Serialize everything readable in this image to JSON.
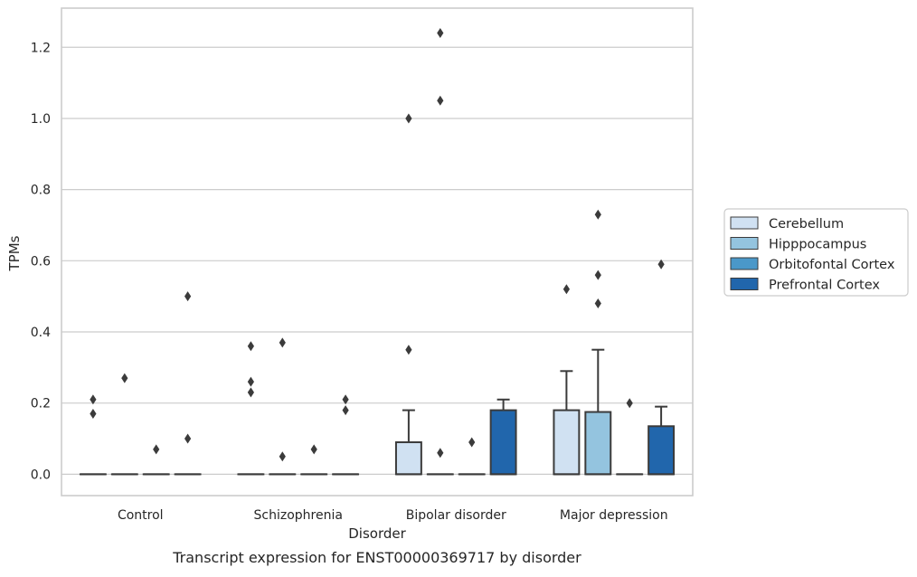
{
  "chart_data": {
    "type": "box",
    "title": "",
    "caption": "Transcript expression for ENST00000369717 by disorder",
    "xlabel": "Disorder",
    "ylabel": "TPMs",
    "ylim": [
      -0.06,
      1.31
    ],
    "yticks": [
      0.0,
      0.2,
      0.4,
      0.6,
      0.8,
      1.0,
      1.2
    ],
    "ytick_labels": [
      "0.0",
      "0.2",
      "0.4",
      "0.6",
      "0.8",
      "1.0",
      "1.2"
    ],
    "grid": "horizontal",
    "legend_position": "right",
    "categories": [
      "Control",
      "Schizophrenia",
      "Bipolar disorder",
      "Major depression"
    ],
    "series": [
      {
        "name": "Cerebellum",
        "color": "#d0e1f2",
        "boxes": [
          {
            "q1": 0.0,
            "q3": 0.0,
            "median": 0.0,
            "whisker_low": 0.0,
            "whisker_high": 0.0,
            "outliers": [
              0.17,
              0.21
            ]
          },
          {
            "q1": 0.0,
            "q3": 0.0,
            "median": 0.0,
            "whisker_low": 0.0,
            "whisker_high": 0.0,
            "outliers": [
              0.23,
              0.26,
              0.36
            ]
          },
          {
            "q1": 0.0,
            "q3": 0.09,
            "median": 0.0,
            "whisker_low": 0.0,
            "whisker_high": 0.18,
            "outliers": [
              0.35,
              1.0
            ]
          },
          {
            "q1": 0.0,
            "q3": 0.18,
            "median": 0.0,
            "whisker_low": 0.0,
            "whisker_high": 0.29,
            "outliers": [
              0.52
            ]
          }
        ]
      },
      {
        "name": "Hipppocampus",
        "color": "#94c4df",
        "boxes": [
          {
            "q1": 0.0,
            "q3": 0.0,
            "median": 0.0,
            "whisker_low": 0.0,
            "whisker_high": 0.0,
            "outliers": [
              0.27
            ]
          },
          {
            "q1": 0.0,
            "q3": 0.0,
            "median": 0.0,
            "whisker_low": 0.0,
            "whisker_high": 0.0,
            "outliers": [
              0.05,
              0.37
            ]
          },
          {
            "q1": 0.0,
            "q3": 0.0,
            "median": 0.0,
            "whisker_low": 0.0,
            "whisker_high": 0.0,
            "outliers": [
              0.06,
              1.05,
              1.24
            ]
          },
          {
            "q1": 0.0,
            "q3": 0.175,
            "median": 0.0,
            "whisker_low": 0.0,
            "whisker_high": 0.35,
            "outliers": [
              0.48,
              0.56,
              0.73
            ]
          }
        ]
      },
      {
        "name": "Orbitofontal Cortex",
        "color": "#4a98c9",
        "boxes": [
          {
            "q1": 0.0,
            "q3": 0.0,
            "median": 0.0,
            "whisker_low": 0.0,
            "whisker_high": 0.0,
            "outliers": [
              0.07
            ]
          },
          {
            "q1": 0.0,
            "q3": 0.0,
            "median": 0.0,
            "whisker_low": 0.0,
            "whisker_high": 0.0,
            "outliers": [
              0.07
            ]
          },
          {
            "q1": 0.0,
            "q3": 0.0,
            "median": 0.0,
            "whisker_low": 0.0,
            "whisker_high": 0.0,
            "outliers": [
              0.09
            ]
          },
          {
            "q1": 0.0,
            "q3": 0.0,
            "median": 0.0,
            "whisker_low": 0.0,
            "whisker_high": 0.0,
            "outliers": [
              0.2
            ]
          }
        ]
      },
      {
        "name": "Prefrontal Cortex",
        "color": "#2166ac",
        "boxes": [
          {
            "q1": 0.0,
            "q3": 0.0,
            "median": 0.0,
            "whisker_low": 0.0,
            "whisker_high": 0.0,
            "outliers": [
              0.1,
              0.5
            ]
          },
          {
            "q1": 0.0,
            "q3": 0.0,
            "median": 0.0,
            "whisker_low": 0.0,
            "whisker_high": 0.0,
            "outliers": [
              0.18,
              0.21
            ]
          },
          {
            "q1": 0.0,
            "q3": 0.18,
            "median": 0.0,
            "whisker_low": 0.0,
            "whisker_high": 0.21,
            "outliers": []
          },
          {
            "q1": 0.0,
            "q3": 0.135,
            "median": 0.0,
            "whisker_low": 0.0,
            "whisker_high": 0.19,
            "outliers": [
              0.59
            ]
          }
        ]
      }
    ]
  }
}
